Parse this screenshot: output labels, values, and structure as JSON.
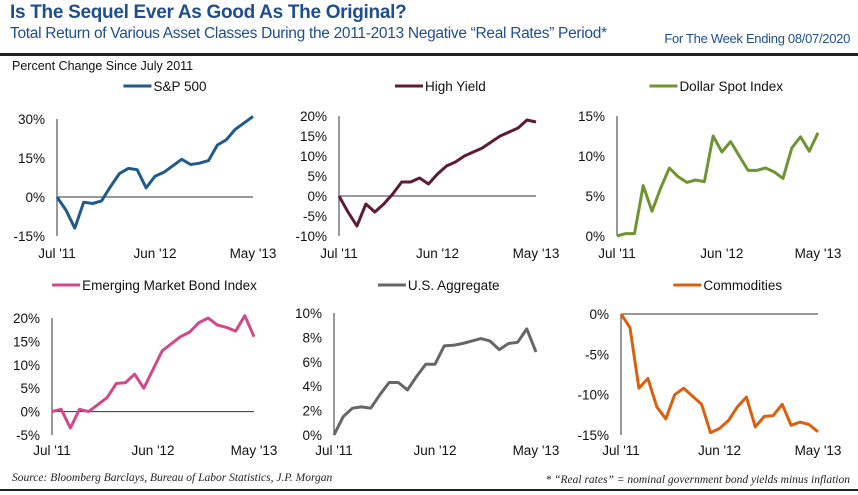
{
  "header": {
    "title": "Is The Sequel Ever As Good As The Original?",
    "subtitle": "Total Return of Various Asset Classes During the 2011-2013 Negative “Real Rates” Period*",
    "date": "For The Week Ending 08/07/2020",
    "unit_label": "Percent Change Since July 2011"
  },
  "footer": {
    "source": "Source: Bloomberg Barclays, Bureau of Labor Statistics, J.P. Morgan",
    "note": "* “Real rates” = nominal government bond yields minus inflation"
  },
  "chart_data": [
    {
      "type": "line",
      "title": "S&P 500",
      "color": "#1f5a8c",
      "x_ticks": [
        "Jul '11",
        "Jun '12",
        "May '13"
      ],
      "y_ticks": [
        "30%",
        "15%",
        "0%",
        "-15%"
      ],
      "ylim": [
        -15,
        30
      ],
      "y_tick_values": [
        30,
        15,
        0,
        -15
      ],
      "values": [
        0,
        -5,
        -12,
        -2,
        -2.5,
        -1.5,
        4,
        9,
        11,
        10.5,
        3.5,
        8,
        9.5,
        12,
        14.5,
        12.5,
        13,
        14,
        20,
        22,
        26,
        28.5,
        31
      ]
    },
    {
      "type": "line",
      "title": "High Yield",
      "color": "#5e1a36",
      "x_ticks": [
        "Jul '11",
        "Jun '12",
        "May '13"
      ],
      "y_ticks": [
        "20%",
        "15%",
        "10%",
        "5%",
        "0%",
        "-5%",
        "-10%"
      ],
      "ylim": [
        -10,
        20
      ],
      "y_tick_values": [
        20,
        15,
        10,
        5,
        0,
        -5,
        -10
      ],
      "values": [
        0,
        -4,
        -7.5,
        -2,
        -4,
        -2,
        0.5,
        3.5,
        3.5,
        4.5,
        3,
        5.5,
        7.5,
        8.5,
        10,
        11,
        12,
        13.5,
        15,
        16,
        17,
        19,
        18.5
      ]
    },
    {
      "type": "line",
      "title": "Dollar Spot Index",
      "color": "#6f9432",
      "x_ticks": [
        "Jul '11",
        "Jun '12",
        "May '13"
      ],
      "y_ticks": [
        "15%",
        "10%",
        "5%",
        "0%"
      ],
      "ylim": [
        0,
        15
      ],
      "y_tick_values": [
        15,
        10,
        5,
        0
      ],
      "values": [
        0,
        0.3,
        0.3,
        6.3,
        3.1,
        6,
        8.5,
        7.4,
        6.7,
        7,
        6.8,
        12.5,
        10.5,
        11.8,
        10,
        8.2,
        8.2,
        8.5,
        8,
        7.2,
        11,
        12.4,
        10.6,
        12.9
      ]
    },
    {
      "type": "line",
      "title": "Emerging Market Bond Index",
      "color": "#d0498b",
      "x_ticks": [
        "Jul '11",
        "Jun '12",
        "May '13"
      ],
      "y_ticks": [
        "20%",
        "15%",
        "10%",
        "5%",
        "0%",
        "-5%"
      ],
      "ylim": [
        -5,
        20
      ],
      "y_tick_values": [
        20,
        15,
        10,
        5,
        0,
        -5
      ],
      "values": [
        0,
        0.5,
        -3.5,
        0.5,
        0,
        1.5,
        3,
        6,
        6.2,
        8,
        5,
        9,
        13,
        14.5,
        16,
        17,
        19,
        20,
        18.5,
        18,
        17.2,
        20.5,
        16
      ]
    },
    {
      "type": "line",
      "title": "U.S. Aggregate",
      "color": "#666666",
      "x_ticks": [
        "Jul '11",
        "Jun '12",
        "May '13"
      ],
      "y_ticks": [
        "10%",
        "8%",
        "6%",
        "4%",
        "2%",
        "0%"
      ],
      "ylim": [
        0,
        10
      ],
      "y_tick_values": [
        10,
        8,
        6,
        4,
        2,
        0
      ],
      "values": [
        0,
        1.5,
        2.2,
        2.3,
        2.2,
        3.3,
        4.3,
        4.3,
        3.7,
        4.8,
        5.8,
        5.8,
        7.3,
        7.35,
        7.5,
        7.7,
        7.9,
        7.7,
        7,
        7.5,
        7.6,
        8.7,
        6.8
      ]
    },
    {
      "type": "line",
      "title": "Commodities",
      "color": "#d9600f",
      "x_ticks": [
        "Jul '11",
        "Jun '12",
        "May '13"
      ],
      "y_ticks": [
        "0%",
        "-5%",
        "-10%",
        "-15%"
      ],
      "ylim": [
        -15,
        0
      ],
      "y_tick_values": [
        0,
        -5,
        -10,
        -15
      ],
      "values": [
        0,
        -1.7,
        -9.2,
        -8,
        -11.5,
        -13,
        -10,
        -9.2,
        -10.2,
        -11.2,
        -14.7,
        -14.2,
        -13.2,
        -11.5,
        -10.3,
        -14,
        -12.7,
        -12.6,
        -11.2,
        -13.8,
        -13.4,
        -13.7,
        -14.6
      ]
    }
  ]
}
